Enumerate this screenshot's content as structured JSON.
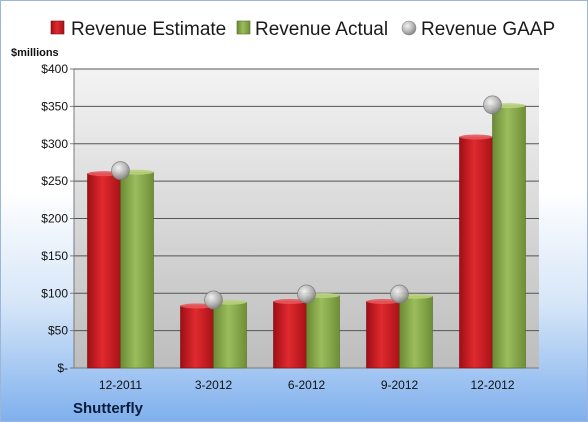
{
  "chart_data": {
    "type": "bar",
    "unit_label": "$millions",
    "company": "Shutterfly",
    "categories": [
      "12-2011",
      "3-2012",
      "6-2012",
      "9-2012",
      "12-2012"
    ],
    "series": [
      {
        "name": "Revenue Estimate",
        "kind": "bar",
        "color": "#c8181e",
        "values": [
          260,
          83,
          89,
          89,
          309
        ]
      },
      {
        "name": "Revenue Actual",
        "kind": "bar",
        "color": "#86a84a",
        "values": [
          262,
          88,
          97,
          96,
          351
        ]
      },
      {
        "name": "Revenue GAAP",
        "kind": "marker",
        "color": "#a8a8a8",
        "values": [
          264,
          91,
          99,
          99,
          352
        ]
      }
    ],
    "y_ticks": [
      "$-",
      "$50",
      "$100",
      "$150",
      "$200",
      "$250",
      "$300",
      "$350",
      "$400"
    ],
    "ylim": [
      0,
      400
    ],
    "grid": true,
    "legend_position": "top"
  }
}
